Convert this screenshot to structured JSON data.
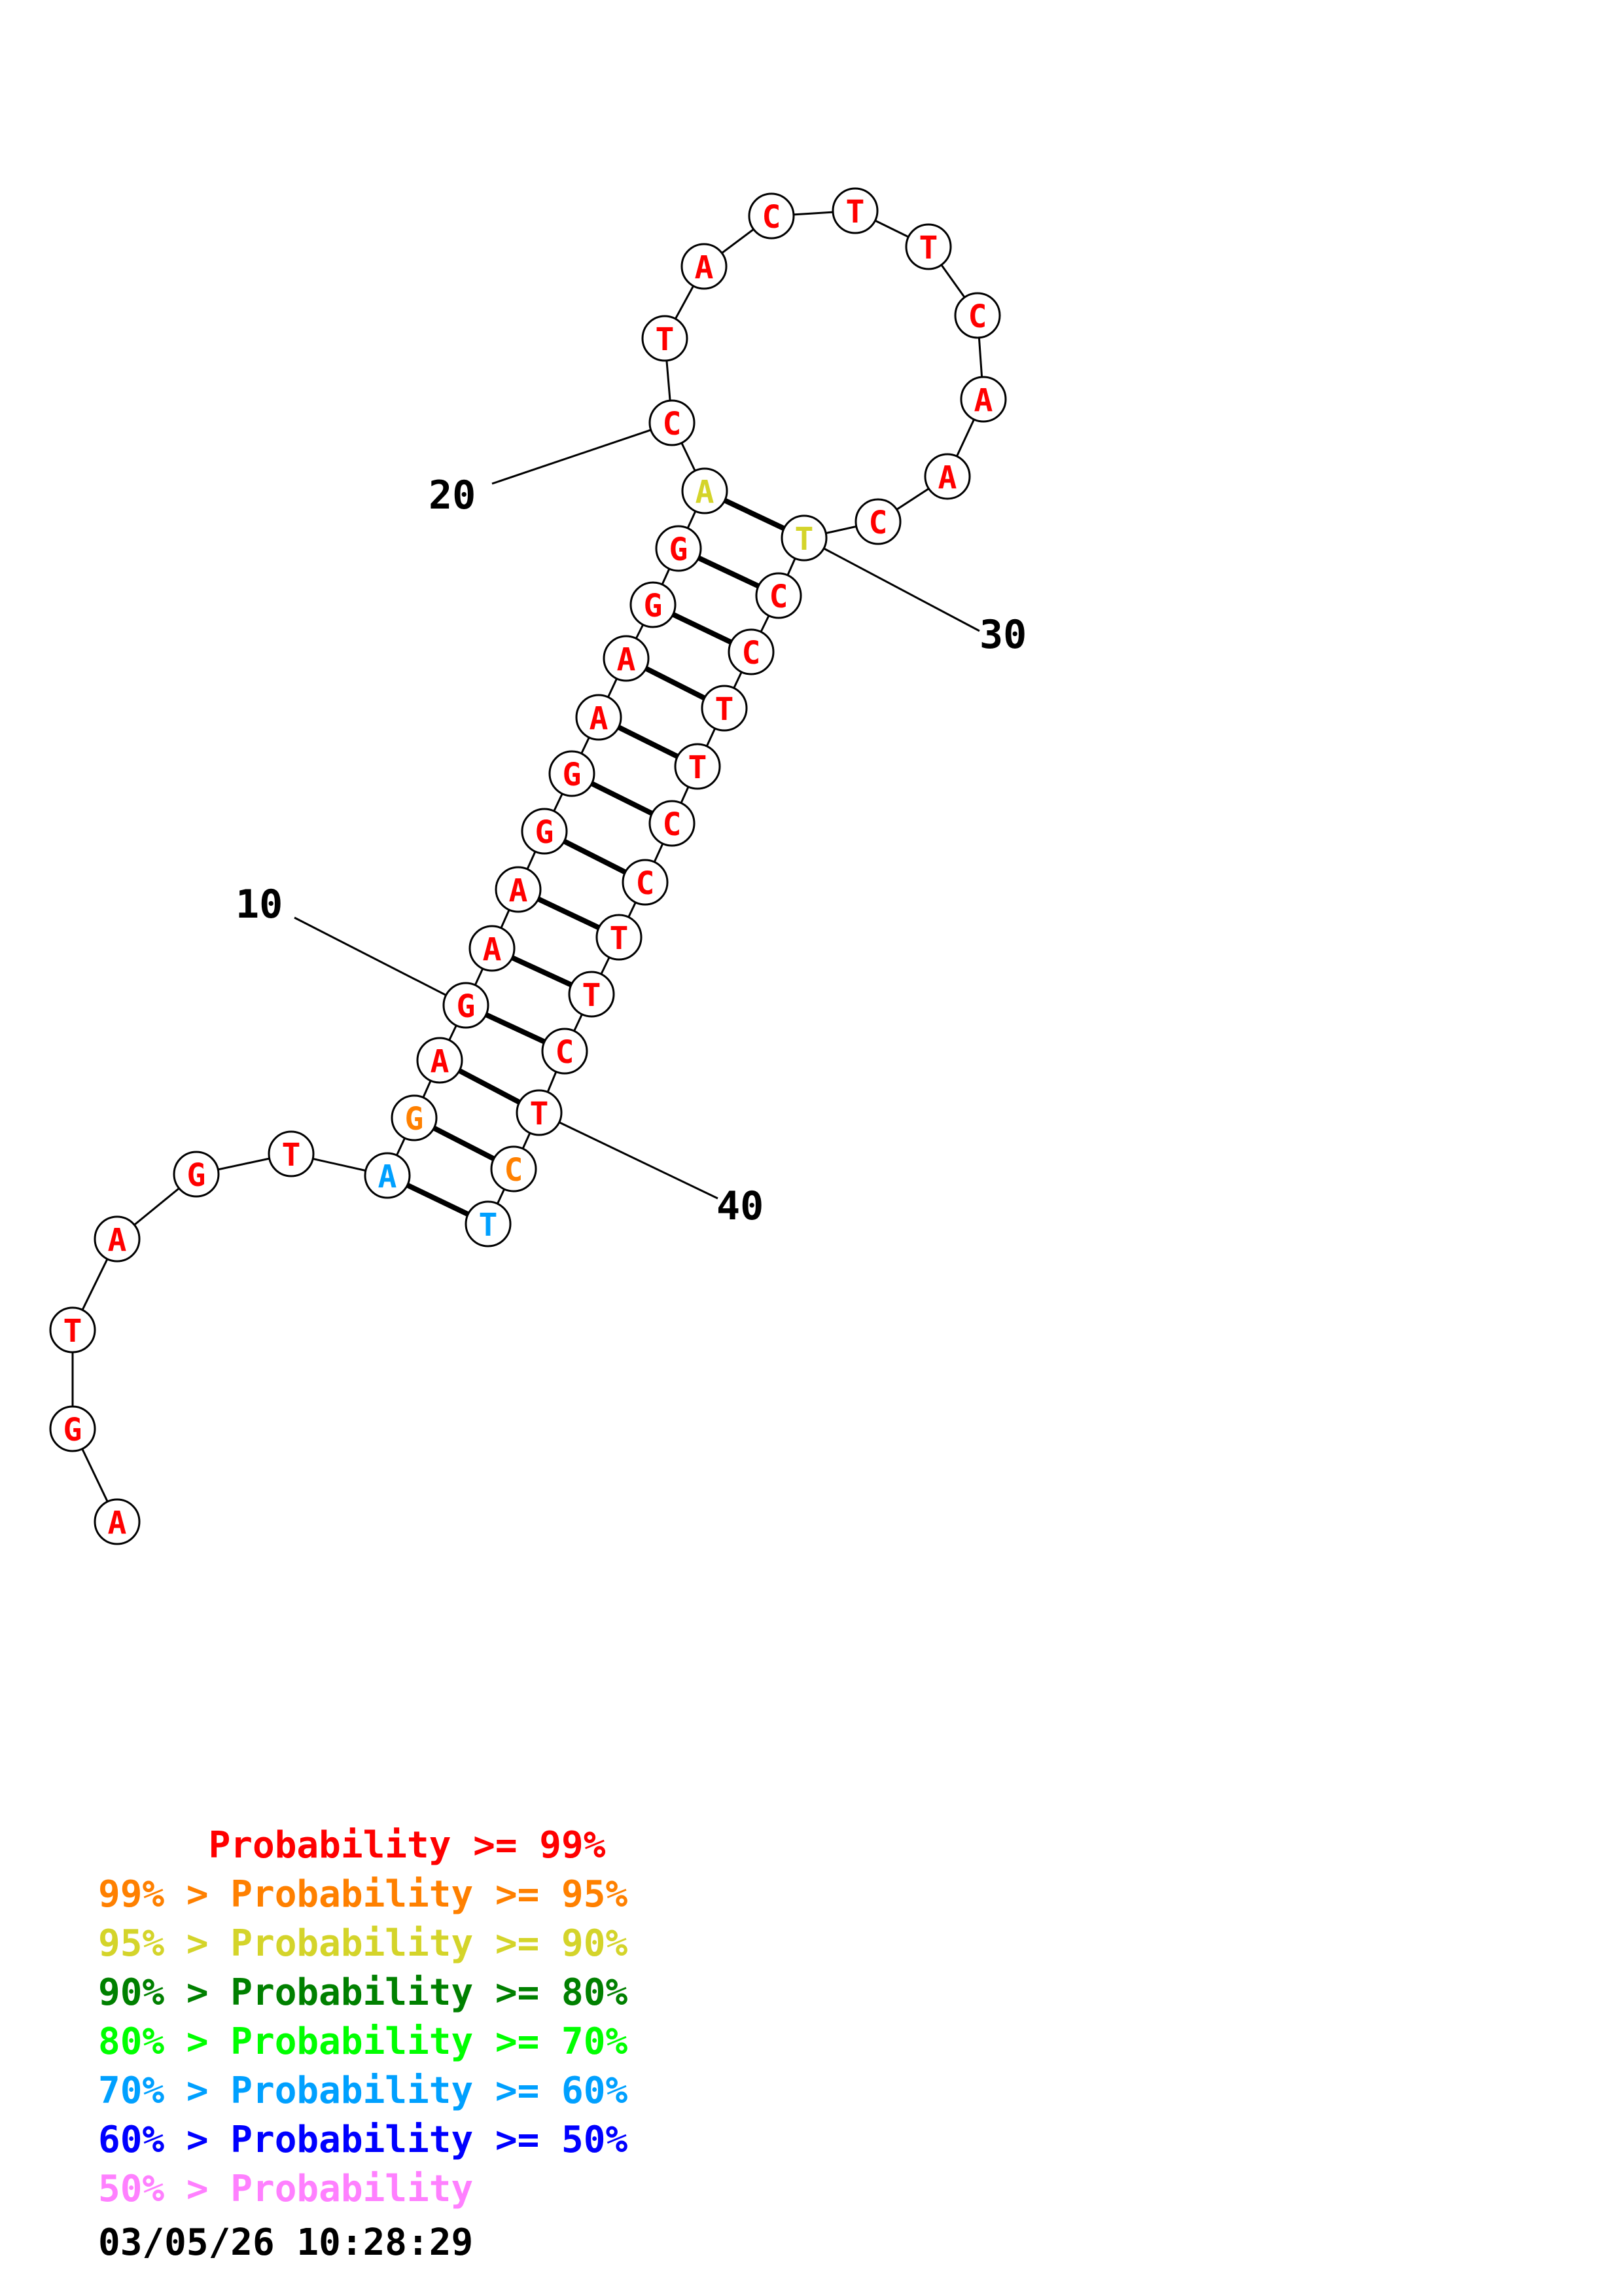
{
  "structure": {
    "sequence": [
      "A",
      "G",
      "T",
      "A",
      "G",
      "T",
      "A",
      "G",
      "A",
      "G",
      "A",
      "A",
      "G",
      "G",
      "A",
      "A",
      "G",
      "G",
      "A",
      "C",
      "T",
      "A",
      "C",
      "T",
      "T",
      "C",
      "A",
      "A",
      "C",
      "T",
      "C",
      "C",
      "T",
      "T",
      "C",
      "C",
      "T",
      "T",
      "C",
      "T",
      "C",
      "T"
    ],
    "probability_class": [
      0,
      0,
      0,
      0,
      0,
      0,
      5,
      1,
      0,
      0,
      0,
      0,
      0,
      0,
      0,
      0,
      0,
      0,
      2,
      0,
      0,
      0,
      0,
      0,
      0,
      0,
      0,
      0,
      0,
      2,
      0,
      0,
      0,
      0,
      0,
      0,
      0,
      0,
      0,
      0,
      1,
      5
    ],
    "pairs": [
      [
        7,
        42
      ],
      [
        8,
        41
      ],
      [
        9,
        40
      ],
      [
        10,
        39
      ],
      [
        11,
        38
      ],
      [
        12,
        37
      ],
      [
        13,
        36
      ],
      [
        14,
        35
      ],
      [
        15,
        34
      ],
      [
        16,
        33
      ],
      [
        17,
        32
      ],
      [
        18,
        31
      ],
      [
        19,
        30
      ]
    ],
    "ticks": [
      {
        "label": "10",
        "index": 10
      },
      {
        "label": "20",
        "index": 20
      },
      {
        "label": "30",
        "index": 30
      },
      {
        "label": "40",
        "index": 40
      }
    ]
  },
  "colors": {
    "classes": [
      "#ff0000",
      "#ff8000",
      "#d4d42a",
      "#008000",
      "#00ff00",
      "#00a0ff",
      "#0000ff",
      "#ff80ff"
    ]
  },
  "legend": {
    "entries": [
      {
        "text": "     Probability >= 99%",
        "class": 0
      },
      {
        "text": "99% > Probability >= 95%",
        "class": 1
      },
      {
        "text": "95% > Probability >= 90%",
        "class": 2
      },
      {
        "text": "90% > Probability >= 80%",
        "class": 3
      },
      {
        "text": "80% > Probability >= 70%",
        "class": 4
      },
      {
        "text": "70% > Probability >= 60%",
        "class": 5
      },
      {
        "text": "60% > Probability >= 50%",
        "class": 6
      },
      {
        "text": "50% > Probability",
        "class": 7
      }
    ],
    "timestamp": "03/05/26 10:28:29"
  }
}
